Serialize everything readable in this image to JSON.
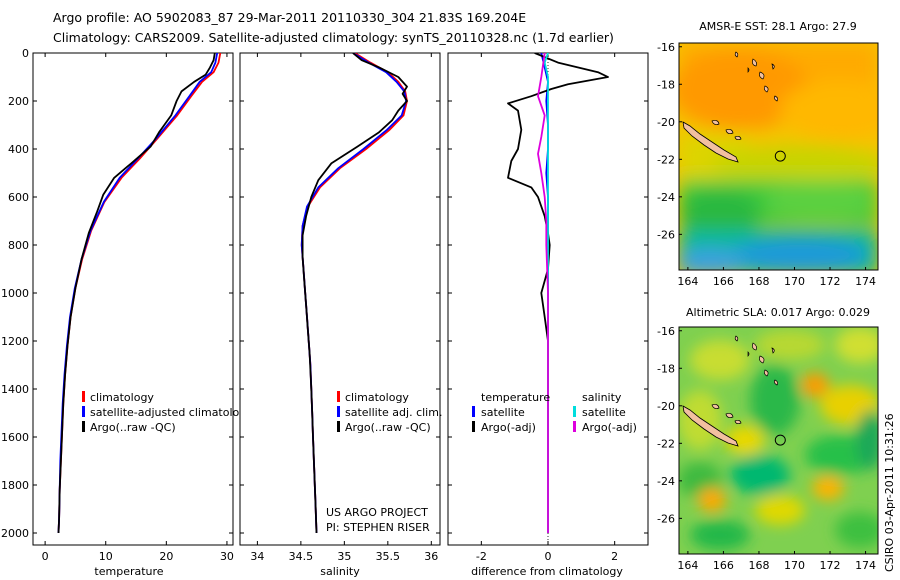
{
  "header": {
    "line1": "Argo profile: AO 5902083_87 29-Mar-2011 20110330_304 21.83S 169.204E",
    "line2": "Climatology: CARS2009. Satellite-adjusted climatology: synTS_20110328.nc (1.7d earlier)"
  },
  "sidebar_stamp": "CSIRO 03-Apr-2011 10:31:26",
  "chart_data": [
    {
      "type": "line",
      "xlabel": "temperature",
      "ylabel": "",
      "xlim": [
        -2,
        31
      ],
      "ylim": [
        2050,
        0
      ],
      "xticks": [
        0,
        10,
        20,
        30
      ],
      "yticks": [
        0,
        200,
        400,
        600,
        800,
        1000,
        1200,
        1400,
        1600,
        1800,
        2000
      ],
      "legend": [
        "climatology",
        "satellite-adjusted climatology",
        "Argo(..raw -QC)"
      ],
      "series": [
        {
          "name": "climatology",
          "color": "#ff0000",
          "points": [
            [
              28.9,
              0
            ],
            [
              28.6,
              40
            ],
            [
              27.8,
              80
            ],
            [
              25.9,
              120
            ],
            [
              24.1,
              180
            ],
            [
              21.8,
              260
            ],
            [
              18.4,
              360
            ],
            [
              15.6,
              440
            ],
            [
              12.6,
              520
            ],
            [
              9.8,
              620
            ],
            [
              7.6,
              740
            ],
            [
              6.1,
              860
            ],
            [
              5.0,
              980
            ],
            [
              4.2,
              1100
            ],
            [
              3.7,
              1220
            ],
            [
              3.3,
              1340
            ],
            [
              3.0,
              1460
            ],
            [
              2.8,
              1580
            ],
            [
              2.6,
              1700
            ],
            [
              2.4,
              1820
            ],
            [
              2.3,
              1940
            ],
            [
              2.2,
              2000
            ]
          ]
        },
        {
          "name": "satellite-adjusted climatology",
          "color": "#0000ff",
          "points": [
            [
              28.4,
              0
            ],
            [
              28.1,
              40
            ],
            [
              27.4,
              80
            ],
            [
              25.5,
              120
            ],
            [
              23.8,
              180
            ],
            [
              21.5,
              260
            ],
            [
              18.2,
              360
            ],
            [
              15.3,
              440
            ],
            [
              12.3,
              520
            ],
            [
              9.7,
              620
            ],
            [
              7.5,
              740
            ],
            [
              6.0,
              860
            ],
            [
              4.9,
              980
            ],
            [
              4.1,
              1100
            ],
            [
              3.6,
              1220
            ],
            [
              3.2,
              1340
            ],
            [
              2.9,
              1460
            ],
            [
              2.7,
              1580
            ],
            [
              2.5,
              1700
            ],
            [
              2.4,
              1820
            ],
            [
              2.3,
              1940
            ],
            [
              2.2,
              2000
            ]
          ]
        },
        {
          "name": "Argo(..raw -QC)",
          "color": "#000000",
          "points": [
            [
              28.0,
              0
            ],
            [
              27.8,
              30
            ],
            [
              27.2,
              60
            ],
            [
              26.5,
              90
            ],
            [
              24.6,
              120
            ],
            [
              22.5,
              160
            ],
            [
              21.7,
              200
            ],
            [
              20.8,
              260
            ],
            [
              18.8,
              330
            ],
            [
              17.4,
              390
            ],
            [
              14.2,
              460
            ],
            [
              11.4,
              520
            ],
            [
              9.6,
              590
            ],
            [
              8.6,
              660
            ],
            [
              7.2,
              750
            ],
            [
              6.0,
              860
            ],
            [
              5.0,
              980
            ],
            [
              4.2,
              1100
            ],
            [
              3.7,
              1220
            ],
            [
              3.3,
              1340
            ],
            [
              3.0,
              1460
            ],
            [
              2.8,
              1580
            ],
            [
              2.6,
              1700
            ],
            [
              2.4,
              1820
            ],
            [
              2.3,
              1940
            ],
            [
              2.2,
              2000
            ]
          ]
        }
      ]
    },
    {
      "type": "line",
      "xlabel": "salinity",
      "xlim": [
        33.8,
        36.1
      ],
      "ylim": [
        2050,
        0
      ],
      "xticks": [
        34,
        34.5,
        35,
        35.5,
        36
      ],
      "legend": [
        "climatology",
        "satellite adj. clim.",
        "Argo(..raw -QC)"
      ],
      "annotation": [
        "US ARGO PROJECT",
        "PI: STEPHEN RISER"
      ],
      "series": [
        {
          "name": "climatology",
          "color": "#ff0000",
          "points": [
            [
              35.12,
              0
            ],
            [
              35.3,
              40
            ],
            [
              35.5,
              80
            ],
            [
              35.62,
              120
            ],
            [
              35.7,
              160
            ],
            [
              35.72,
              200
            ],
            [
              35.68,
              260
            ],
            [
              35.52,
              320
            ],
            [
              35.25,
              400
            ],
            [
              34.95,
              480
            ],
            [
              34.72,
              560
            ],
            [
              34.58,
              640
            ],
            [
              34.52,
              720
            ],
            [
              34.51,
              800
            ],
            [
              34.53,
              900
            ],
            [
              34.55,
              1000
            ],
            [
              34.57,
              1100
            ],
            [
              34.59,
              1200
            ],
            [
              34.61,
              1300
            ],
            [
              34.62,
              1400
            ],
            [
              34.63,
              1500
            ],
            [
              34.64,
              1600
            ],
            [
              34.65,
              1700
            ],
            [
              34.66,
              1800
            ],
            [
              34.67,
              1900
            ],
            [
              34.68,
              2000
            ]
          ]
        },
        {
          "name": "satellite adj. clim.",
          "color": "#0000ff",
          "points": [
            [
              35.1,
              0
            ],
            [
              35.28,
              40
            ],
            [
              35.48,
              80
            ],
            [
              35.6,
              120
            ],
            [
              35.69,
              160
            ],
            [
              35.71,
              200
            ],
            [
              35.66,
              260
            ],
            [
              35.49,
              320
            ],
            [
              35.22,
              400
            ],
            [
              34.93,
              480
            ],
            [
              34.7,
              560
            ],
            [
              34.57,
              640
            ],
            [
              34.52,
              720
            ],
            [
              34.51,
              800
            ],
            [
              34.53,
              900
            ],
            [
              34.55,
              1000
            ],
            [
              34.57,
              1100
            ],
            [
              34.59,
              1200
            ],
            [
              34.61,
              1300
            ],
            [
              34.62,
              1400
            ],
            [
              34.63,
              1500
            ],
            [
              34.64,
              1600
            ],
            [
              34.65,
              1700
            ],
            [
              34.66,
              1800
            ],
            [
              34.67,
              1900
            ],
            [
              34.68,
              2000
            ]
          ]
        },
        {
          "name": "Argo(..raw -QC)",
          "color": "#000000",
          "points": [
            [
              35.1,
              0
            ],
            [
              35.2,
              30
            ],
            [
              35.4,
              60
            ],
            [
              35.62,
              100
            ],
            [
              35.72,
              140
            ],
            [
              35.67,
              170
            ],
            [
              35.72,
              200
            ],
            [
              35.62,
              240
            ],
            [
              35.55,
              280
            ],
            [
              35.4,
              330
            ],
            [
              35.15,
              390
            ],
            [
              34.85,
              460
            ],
            [
              34.7,
              530
            ],
            [
              34.62,
              600
            ],
            [
              34.56,
              680
            ],
            [
              34.52,
              760
            ],
            [
              34.52,
              850
            ],
            [
              34.54,
              950
            ],
            [
              34.56,
              1050
            ],
            [
              34.58,
              1150
            ],
            [
              34.6,
              1250
            ],
            [
              34.62,
              1400
            ],
            [
              34.63,
              1500
            ],
            [
              34.64,
              1600
            ],
            [
              34.65,
              1700
            ],
            [
              34.66,
              1800
            ],
            [
              34.67,
              1900
            ],
            [
              34.68,
              2000
            ]
          ]
        }
      ]
    },
    {
      "type": "line",
      "xlabel": "difference from climatology",
      "xlim": [
        -3,
        3
      ],
      "ylim": [
        2050,
        0
      ],
      "xticks": [
        -2,
        0,
        2
      ],
      "legend_columns": [
        {
          "title": "temperature",
          "items": [
            "satellite",
            "Argo(-adj)"
          ]
        },
        {
          "title": "salinity",
          "items": [
            "satellite",
            "Argo(-adj)"
          ]
        }
      ],
      "series": [
        {
          "name": "temperature satellite",
          "color": "#0000ff",
          "points": [
            [
              -0.2,
              0
            ],
            [
              -0.1,
              60
            ],
            [
              0.0,
              120
            ],
            [
              -0.05,
              200
            ],
            [
              0.0,
              300
            ],
            [
              0.0,
              400
            ],
            [
              -0.05,
              500
            ],
            [
              0.0,
              600
            ],
            [
              0.0,
              800
            ],
            [
              0.0,
              1000
            ],
            [
              0.0,
              2000
            ]
          ]
        },
        {
          "name": "temperature Argo(-adj)",
          "color": "#000000",
          "points": [
            [
              -0.4,
              0
            ],
            [
              0.3,
              40
            ],
            [
              1.5,
              80
            ],
            [
              1.8,
              100
            ],
            [
              0.6,
              130
            ],
            [
              0.1,
              150
            ],
            [
              -0.5,
              180
            ],
            [
              -1.2,
              210
            ],
            [
              -0.9,
              240
            ],
            [
              -0.8,
              320
            ],
            [
              -0.9,
              400
            ],
            [
              -1.1,
              450
            ],
            [
              -1.2,
              520
            ],
            [
              -0.5,
              560
            ],
            [
              -0.3,
              600
            ],
            [
              -0.1,
              680
            ],
            [
              0.0,
              750
            ],
            [
              0.05,
              800
            ],
            [
              0.0,
              900
            ],
            [
              -0.2,
              1000
            ],
            [
              -0.1,
              1100
            ],
            [
              0.0,
              1200
            ],
            [
              0.0,
              2000
            ]
          ]
        },
        {
          "name": "salinity satellite",
          "color": "#00dddd",
          "points": [
            [
              0.0,
              0
            ],
            [
              -0.1,
              40
            ],
            [
              0.0,
              100
            ],
            [
              0.0,
              200
            ],
            [
              0.0,
              2000
            ]
          ]
        },
        {
          "name": "salinity Argo(-adj)",
          "color": "#dd00dd",
          "points": [
            [
              -0.1,
              0
            ],
            [
              -0.2,
              100
            ],
            [
              -0.3,
              180
            ],
            [
              -0.1,
              260
            ],
            [
              -0.2,
              350
            ],
            [
              -0.3,
              420
            ],
            [
              -0.2,
              500
            ],
            [
              -0.1,
              600
            ],
            [
              -0.05,
              700
            ],
            [
              -0.05,
              800
            ],
            [
              0.0,
              1000
            ],
            [
              0.0,
              2000
            ]
          ]
        }
      ]
    },
    {
      "type": "heatmap",
      "title": "AMSR-E SST: 28.1 Argo: 27.9",
      "xlim": [
        163.5,
        174.7
      ],
      "ylim": [
        -27.9,
        -15.8
      ],
      "xticks": [
        164,
        166,
        168,
        170,
        172,
        174
      ],
      "yticks": [
        -16,
        -18,
        -20,
        -22,
        -24,
        -26
      ],
      "profile_location": [
        169.204,
        -21.83
      ]
    },
    {
      "type": "heatmap",
      "title": "Altimetric SLA: 0.017 Argo: 0.029",
      "xlim": [
        163.5,
        174.7
      ],
      "ylim": [
        -27.9,
        -15.8
      ],
      "xticks": [
        164,
        166,
        168,
        170,
        172,
        174
      ],
      "yticks": [
        -16,
        -18,
        -20,
        -22,
        -24,
        -26
      ],
      "profile_location": [
        169.204,
        -21.83
      ]
    }
  ]
}
